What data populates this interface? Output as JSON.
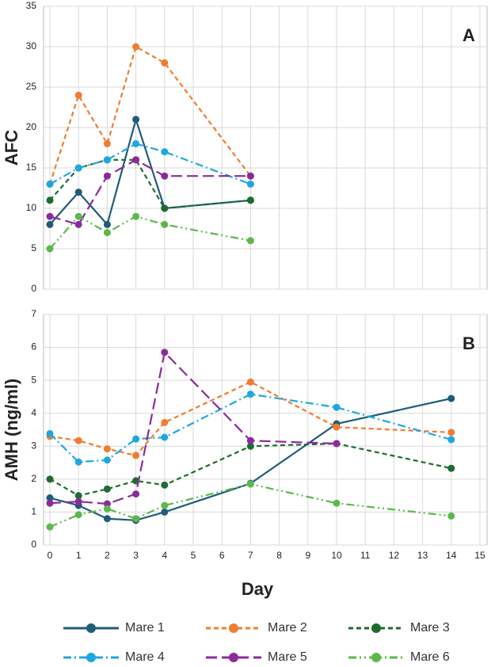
{
  "chart_data": [
    {
      "type": "line",
      "annotation": "A",
      "ylabel": "AFC",
      "x": [
        0,
        1,
        2,
        3,
        4,
        7
      ],
      "xlim": [
        0,
        15
      ],
      "xticks": [
        0,
        1,
        2,
        3,
        4,
        5,
        6,
        7,
        8,
        9,
        10,
        11,
        12,
        13,
        14,
        15
      ],
      "x_tick_labels": false,
      "ylim": [
        0,
        35
      ],
      "yticks": [
        0,
        5,
        10,
        15,
        20,
        25,
        30,
        35
      ],
      "grid": true,
      "series": [
        {
          "color": "#1f5c7a",
          "linestyle": "solid",
          "values": [
            8,
            12,
            8,
            21,
            10,
            11
          ]
        },
        {
          "color": "#f07c30",
          "linestyle": "dashed",
          "values": [
            13,
            24,
            18,
            30,
            28,
            14
          ]
        },
        {
          "color": "#1e6b30",
          "linestyle": "dashed",
          "values": [
            11,
            15,
            16,
            16,
            10,
            11
          ]
        },
        {
          "color": "#1ea7e0",
          "linestyle": "dashdot",
          "values": [
            13,
            15,
            16,
            18,
            17,
            13
          ]
        },
        {
          "color": "#8c2a9c",
          "linestyle": "longdash",
          "values": [
            9,
            8,
            14,
            16,
            14,
            14
          ]
        },
        {
          "color": "#5cb84a",
          "linestyle": "dashdotdot",
          "values": [
            5,
            9,
            7,
            9,
            8,
            6
          ]
        }
      ]
    },
    {
      "type": "line",
      "annotation": "B",
      "ylabel": "AMH (ng/ml)",
      "xlabel": "Day",
      "x": [
        0,
        1,
        2,
        3,
        4,
        7,
        10,
        14
      ],
      "xlim": [
        0,
        15
      ],
      "xticks": [
        0,
        1,
        2,
        3,
        4,
        5,
        6,
        7,
        8,
        9,
        10,
        11,
        12,
        13,
        14,
        15
      ],
      "x_tick_labels": true,
      "ylim": [
        0,
        7
      ],
      "yticks": [
        0,
        1,
        2,
        3,
        4,
        5,
        6,
        7
      ],
      "grid": true,
      "series": [
        {
          "name": "Mare 1",
          "color": "#1f5c7a",
          "linestyle": "solid",
          "values": [
            1.43,
            1.2,
            0.8,
            0.75,
            1.0,
            1.87,
            3.68,
            4.45
          ]
        },
        {
          "name": "Mare 2",
          "color": "#f07c30",
          "linestyle": "dashed",
          "values": [
            3.3,
            3.17,
            2.92,
            2.72,
            3.72,
            4.95,
            3.58,
            3.42
          ]
        },
        {
          "name": "Mare 3",
          "color": "#1e6b30",
          "linestyle": "dashed",
          "values": [
            2.0,
            1.5,
            1.7,
            1.95,
            1.82,
            3.0,
            3.08,
            2.33
          ]
        },
        {
          "name": "Mare 4",
          "color": "#1ea7e0",
          "linestyle": "dashdot",
          "values": [
            3.38,
            2.52,
            2.58,
            3.22,
            3.27,
            4.58,
            4.18,
            3.2
          ]
        },
        {
          "name": "Mare 5",
          "color": "#8c2a9c",
          "linestyle": "longdash",
          "values": [
            1.27,
            1.32,
            1.25,
            1.55,
            5.85,
            3.17,
            3.08,
            null
          ]
        },
        {
          "name": "Mare 6",
          "color": "#5cb84a",
          "linestyle": "dashdotdot",
          "values": [
            0.55,
            0.92,
            1.1,
            0.8,
            1.2,
            1.85,
            1.27,
            0.88
          ]
        }
      ]
    }
  ]
}
